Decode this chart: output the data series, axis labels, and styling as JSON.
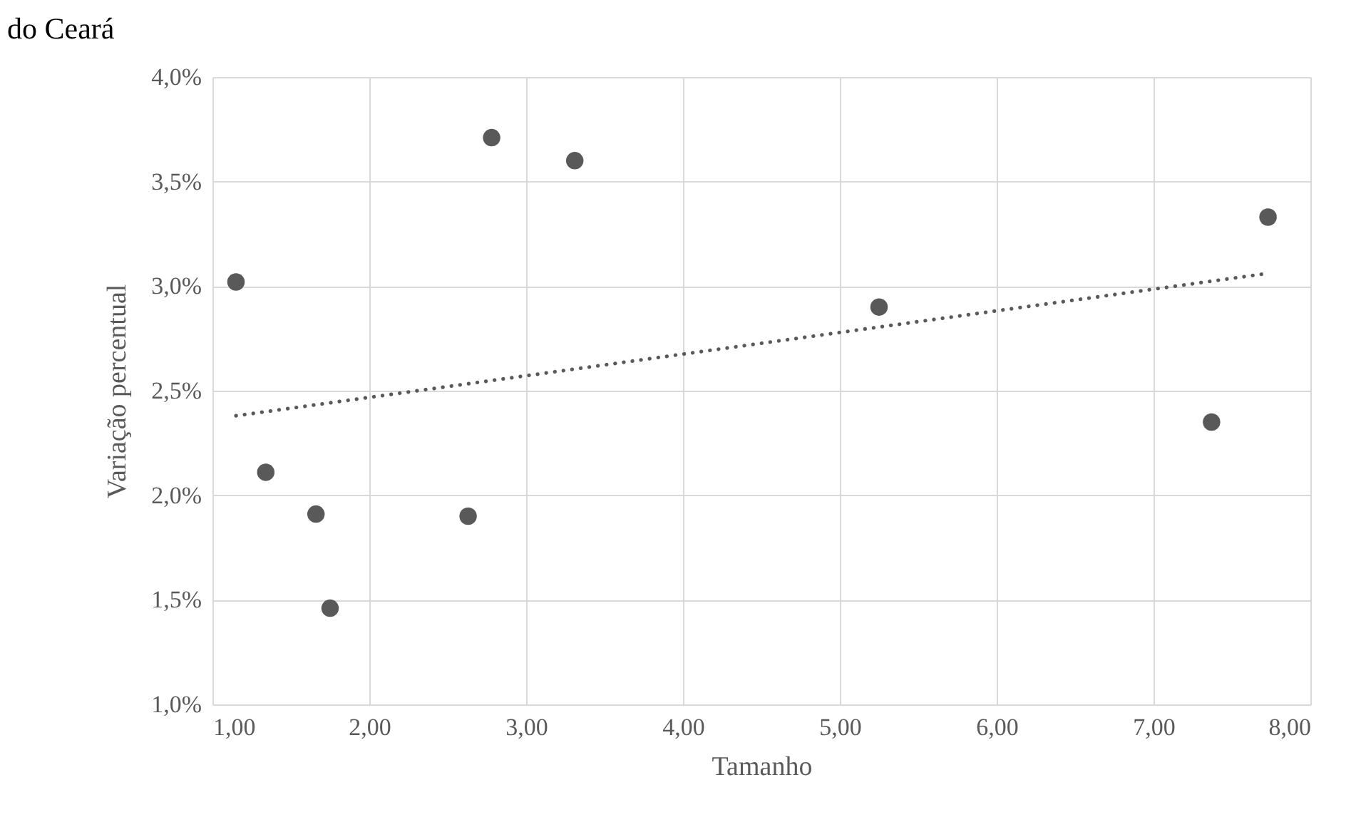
{
  "chart_data": {
    "type": "scatter",
    "title": "do Ceará",
    "xlabel": "Tamanho",
    "ylabel": "Variação percentual",
    "xlim": [
      1,
      8
    ],
    "xticks": [
      {
        "value": 1,
        "label": "1,00"
      },
      {
        "value": 2,
        "label": "2,00"
      },
      {
        "value": 3,
        "label": "3,00"
      },
      {
        "value": 4,
        "label": "4,00"
      },
      {
        "value": 5,
        "label": "5,00"
      },
      {
        "value": 6,
        "label": "6,00"
      },
      {
        "value": 7,
        "label": "7,00"
      },
      {
        "value": 8,
        "label": "8,00"
      }
    ],
    "ylim": [
      1,
      4
    ],
    "yticks": [
      {
        "value": 1,
        "label": "1,0%"
      },
      {
        "value": 1.5,
        "label": "1,5%"
      },
      {
        "value": 2,
        "label": "2,0%"
      },
      {
        "value": 2.5,
        "label": "2,5%"
      },
      {
        "value": 3,
        "label": "3,0%"
      },
      {
        "value": 3.5,
        "label": "3,5%"
      },
      {
        "value": 4,
        "label": "4,0%"
      }
    ],
    "grid": true,
    "marker": "circle",
    "series": [
      {
        "color": "#595959",
        "x": [
          1.15,
          1.34,
          1.66,
          1.75,
          2.63,
          2.78,
          3.31,
          5.25,
          7.37,
          7.73
        ],
        "values": [
          3.02,
          2.11,
          1.91,
          1.46,
          1.9,
          3.71,
          3.6,
          2.9,
          2.35,
          3.33
        ]
      },
      {
        "type": "line",
        "color": "#595959",
        "line_style": "dotted",
        "marker": "none",
        "x": [
          1.15,
          7.72
        ],
        "values": [
          2.38,
          3.06
        ]
      }
    ]
  }
}
